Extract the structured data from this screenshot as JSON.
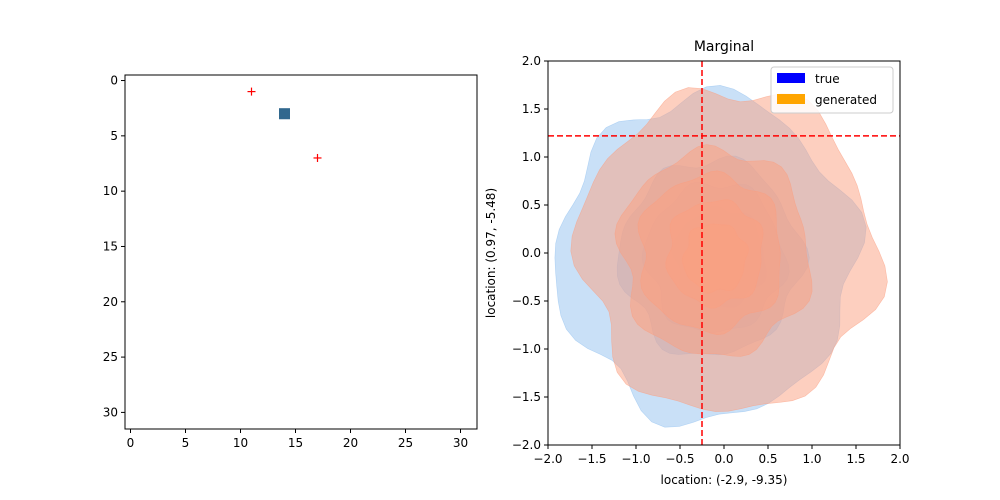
{
  "chart_data": [
    {
      "type": "scatter",
      "title": "",
      "xlabel": "",
      "ylabel": "",
      "xlim": [
        -0.5,
        31.5
      ],
      "ylim": [
        31.5,
        -0.5
      ],
      "y_inverted": true,
      "xticks": [
        0,
        5,
        10,
        15,
        20,
        25,
        30
      ],
      "yticks": [
        0,
        5,
        10,
        15,
        20,
        25,
        30
      ],
      "image_pixel": {
        "x": 14,
        "y": 3,
        "color": "#31688e"
      },
      "markers": [
        {
          "x": 11,
          "y": 1,
          "marker": "plus",
          "color": "#ff0000"
        },
        {
          "x": 17,
          "y": 7,
          "marker": "plus",
          "color": "#ff0000"
        }
      ]
    },
    {
      "type": "contour",
      "title": "Marginal",
      "xlabel": "location: (-2.9, -9.35)",
      "ylabel": "location: (0.97, -5.48)",
      "xlim": [
        -2.0,
        2.0
      ],
      "ylim": [
        -2.0,
        2.0
      ],
      "xticks": [
        -2.0,
        -1.5,
        -1.0,
        -0.5,
        0.0,
        0.5,
        1.0,
        1.5,
        2.0
      ],
      "yticks": [
        -2.0,
        -1.5,
        -1.0,
        -0.5,
        0.0,
        0.5,
        1.0,
        1.5,
        2.0
      ],
      "reference_lines": {
        "vertical_x": -0.25,
        "horizontal_y": 1.22,
        "color": "#ff0000"
      },
      "legend": {
        "location": "upper-right",
        "entries": [
          {
            "label": "true",
            "color": "#0000ff"
          },
          {
            "label": "generated",
            "color": "#ffa500"
          }
        ]
      },
      "series": [
        {
          "name": "true",
          "fill": "#93c1f0",
          "levels": [
            {
              "cx": -0.2,
              "cy": -0.05,
              "r": 1.68
            },
            {
              "cx": -0.15,
              "cy": -0.05,
              "r": 1.02
            },
            {
              "cx": -0.1,
              "cy": -0.05,
              "r": 0.78
            },
            {
              "cx": -0.05,
              "cy": -0.05,
              "r": 0.52
            },
            {
              "cx": -0.05,
              "cy": -0.05,
              "r": 0.34
            }
          ]
        },
        {
          "name": "generated",
          "fill": "#fb9f80",
          "levels": [
            {
              "cx": 0.05,
              "cy": 0.02,
              "r": 1.68
            },
            {
              "cx": -0.1,
              "cy": 0.0,
              "r": 1.08
            },
            {
              "cx": -0.15,
              "cy": 0.0,
              "r": 0.82
            },
            {
              "cx": -0.1,
              "cy": 0.0,
              "r": 0.55
            },
            {
              "cx": -0.1,
              "cy": -0.05,
              "r": 0.36
            }
          ]
        }
      ]
    }
  ]
}
